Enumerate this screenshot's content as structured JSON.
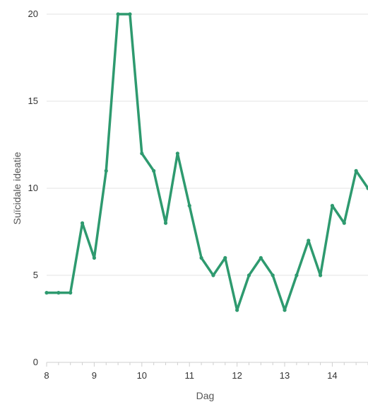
{
  "chart_data": {
    "type": "line",
    "title": "",
    "xlabel": "Dag",
    "ylabel": "Suïcidale ideatie",
    "xlim": [
      8,
      14.75
    ],
    "ylim": [
      0,
      20
    ],
    "x_ticks": [
      8,
      9,
      10,
      11,
      12,
      13,
      14
    ],
    "y_ticks": [
      0,
      5,
      10,
      15,
      20
    ],
    "grid": "horizontal",
    "legend": "none",
    "series": [
      {
        "color": "#2e9a6f",
        "x": [
          8,
          8.25,
          8.5,
          8.75,
          9,
          9.25,
          9.5,
          9.75,
          10,
          10.25,
          10.5,
          10.75,
          11,
          11.25,
          11.5,
          11.75,
          12,
          12.25,
          12.5,
          12.75,
          13,
          13.25,
          13.5,
          13.75,
          14,
          14.25,
          14.5,
          14.75
        ],
        "y": [
          4,
          4,
          4,
          8,
          6,
          11,
          20,
          20,
          12,
          11,
          8,
          12,
          9,
          6,
          5,
          6,
          3,
          5,
          6,
          5,
          3,
          5,
          7,
          5,
          9,
          8,
          11,
          10
        ]
      }
    ]
  }
}
